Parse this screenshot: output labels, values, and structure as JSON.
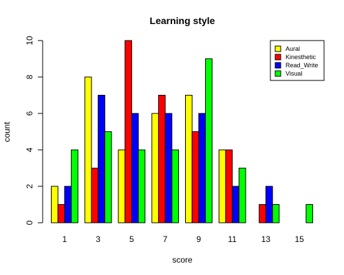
{
  "chart_data": {
    "type": "bar",
    "title": "Learning style",
    "xlabel": "score",
    "ylabel": "count",
    "categories": [
      "1",
      "3",
      "5",
      "7",
      "9",
      "11",
      "13",
      "15"
    ],
    "ylim": [
      0,
      10
    ],
    "yticks": [
      0,
      2,
      4,
      6,
      8,
      10
    ],
    "legend_position": "top-right",
    "series": [
      {
        "name": "Aural",
        "color": "#ffff00",
        "values": [
          2,
          8,
          4,
          6,
          7,
          4,
          0,
          0
        ]
      },
      {
        "name": "Kinesthetic",
        "color": "#ff0000",
        "values": [
          1,
          3,
          10,
          7,
          5,
          4,
          1,
          0
        ]
      },
      {
        "name": "Read_Write",
        "color": "#0000ff",
        "values": [
          2,
          7,
          6,
          6,
          6,
          2,
          2,
          0
        ]
      },
      {
        "name": "Visual",
        "color": "#00ff00",
        "values": [
          4,
          5,
          4,
          4,
          9,
          3,
          1,
          1
        ]
      }
    ]
  }
}
